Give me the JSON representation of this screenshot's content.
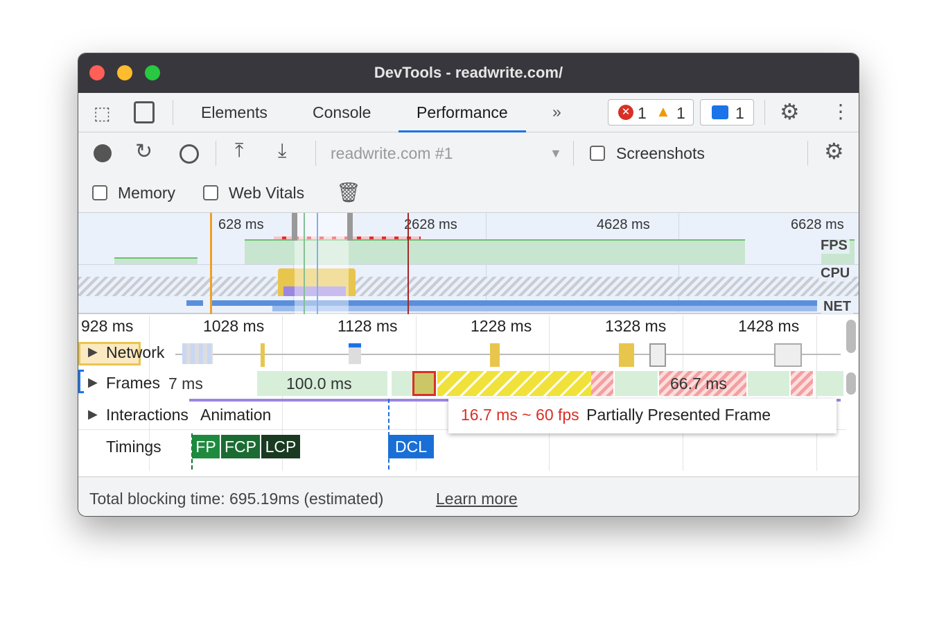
{
  "window": {
    "title": "DevTools - readwrite.com/"
  },
  "tabs": [
    {
      "label": "Elements"
    },
    {
      "label": "Console"
    },
    {
      "label": "Performance",
      "active": true
    }
  ],
  "badges": {
    "errors": "1",
    "warnings": "1",
    "messages": "1"
  },
  "toolbar": {
    "recording_select": "readwrite.com #1",
    "screenshots_label": "Screenshots",
    "memory_label": "Memory",
    "web_vitals_label": "Web Vitals"
  },
  "overview": {
    "ticks": [
      "628 ms",
      "2628 ms",
      "4628 ms",
      "6628 ms"
    ],
    "tracks": [
      "FPS",
      "CPU",
      "NET"
    ]
  },
  "timeline": {
    "ticks": [
      "928 ms",
      "1028 ms",
      "1128 ms",
      "1228 ms",
      "1328 ms",
      "1428 ms"
    ],
    "rows": {
      "network": "Network",
      "frames": "Frames",
      "interactions": "Interactions",
      "timings": "Timings"
    },
    "frame_labels": [
      "7 ms",
      "100.0 ms",
      "66.7 ms"
    ],
    "interaction_label": "Animation",
    "markers": [
      "FP",
      "FCP",
      "LCP",
      "DCL"
    ],
    "marker_colors": {
      "FP": "#1e8a3e",
      "FCP": "#1b6b32",
      "LCP": "#1a3a22",
      "DCL": "#1a6fd6"
    }
  },
  "tooltip": {
    "fps": "16.7 ms ~ 60 fps",
    "desc": "Partially Presented Frame"
  },
  "footer": {
    "text": "Total blocking time: 695.19ms (estimated)",
    "link": "Learn more"
  }
}
